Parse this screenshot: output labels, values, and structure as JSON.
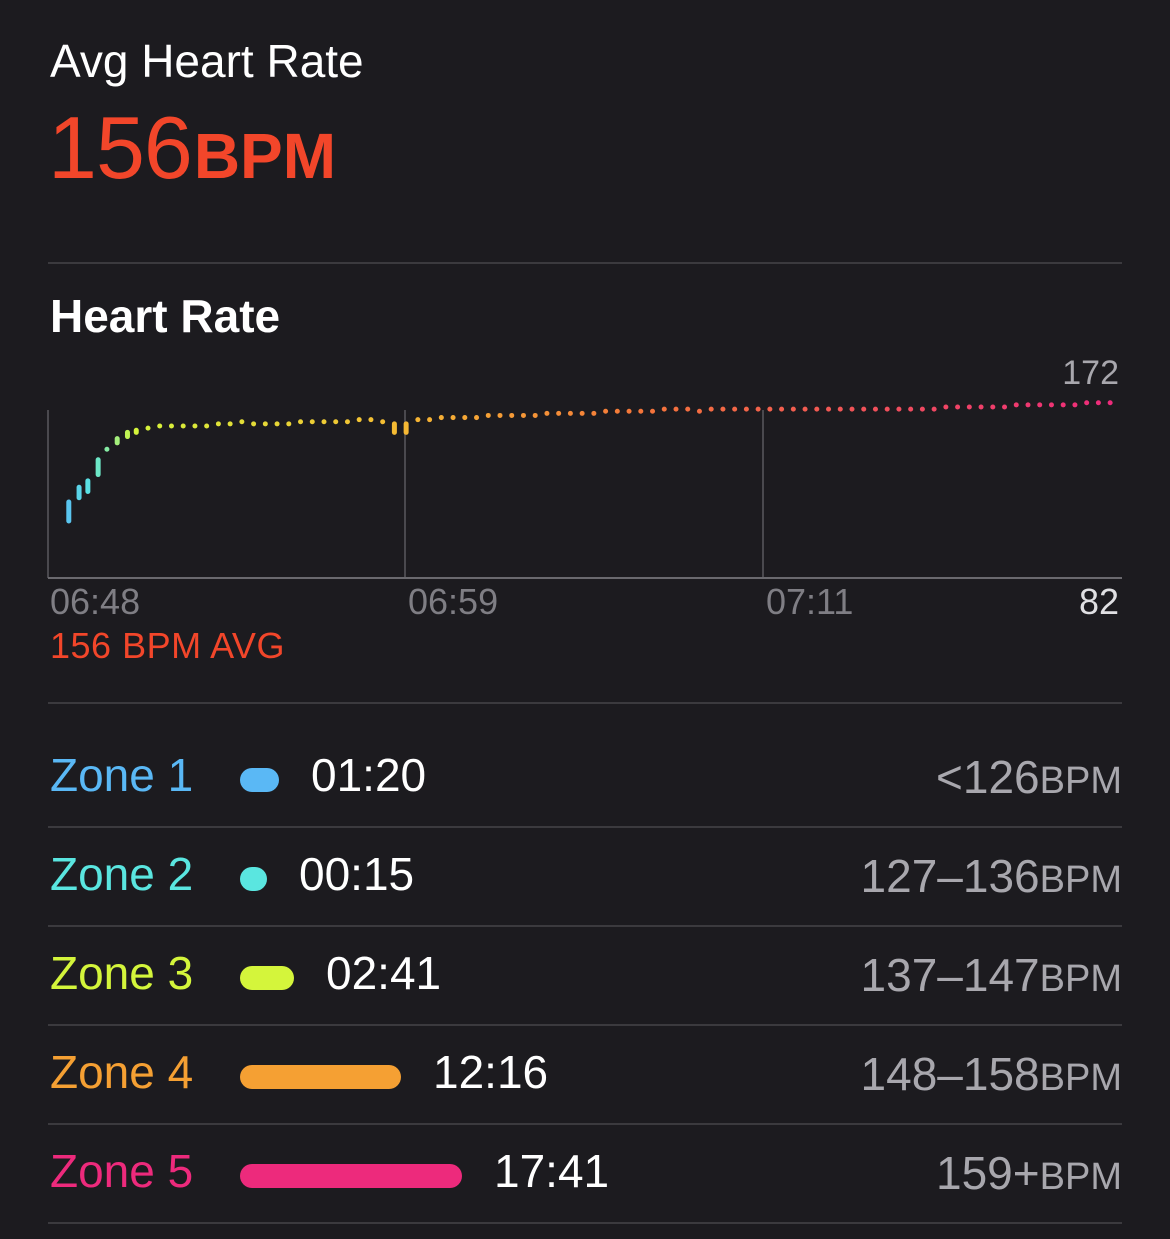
{
  "header": {
    "label": "Avg Heart Rate",
    "value": "156",
    "unit": "BPM"
  },
  "section": {
    "title": "Heart Rate"
  },
  "chart_data": {
    "type": "scatter",
    "ylim": [
      82,
      172
    ],
    "y_max_label": "172",
    "y_min_label": "82",
    "x_tick_labels": [
      "06:48",
      "06:59",
      "07:11"
    ],
    "avg_label": "156 BPM AVG",
    "x_range_minutes": [
      0,
      36
    ],
    "points_minutes": [
      0.3,
      0.65,
      0.95,
      1.3,
      1.6,
      1.95,
      2.3,
      2.6,
      3.0,
      3.4,
      3.8,
      4.2,
      4.6,
      5.0,
      5.4,
      5.8,
      6.2,
      6.6,
      7.0,
      7.4,
      7.8,
      8.2,
      8.6,
      9.0,
      9.4,
      9.8,
      10.2,
      10.6,
      11.0,
      11.4,
      11.8,
      12.2,
      12.6,
      13.0,
      13.4,
      13.8,
      14.2,
      14.6,
      15.0,
      15.4,
      15.8,
      16.2,
      16.6,
      17.0,
      17.4,
      17.8,
      18.2,
      18.6,
      19.0,
      19.4,
      19.8,
      20.2,
      20.6,
      21.0,
      21.4,
      21.8,
      22.2,
      22.6,
      23.0,
      23.4,
      23.8,
      24.2,
      24.6,
      25.0,
      25.4,
      25.8,
      26.2,
      26.6,
      27.0,
      27.4,
      27.8,
      28.2,
      28.6,
      29.0,
      29.4,
      29.8,
      30.2,
      30.6,
      31.0,
      31.4,
      31.8,
      32.2,
      32.6,
      33.0,
      33.4,
      33.8,
      34.2,
      34.6,
      35.0,
      35.4,
      35.8
    ],
    "points_bpm": [
      118,
      125,
      128,
      138,
      143,
      148,
      151,
      152,
      153,
      154,
      154,
      154,
      154,
      154,
      155,
      155,
      156,
      155,
      155,
      155,
      155,
      156,
      156,
      156,
      156,
      156,
      157,
      157,
      156,
      155,
      155,
      157,
      157,
      158,
      158,
      158,
      158,
      159,
      159,
      159,
      159,
      159,
      160,
      160,
      160,
      160,
      160,
      161,
      161,
      161,
      161,
      161,
      162,
      162,
      162,
      161,
      162,
      162,
      162,
      162,
      162,
      162,
      162,
      162,
      162,
      162,
      162,
      162,
      162,
      162,
      162,
      162,
      162,
      162,
      162,
      162,
      163,
      163,
      163,
      163,
      163,
      163,
      164,
      164,
      164,
      164,
      164,
      164,
      165,
      165,
      165
    ],
    "range_bpm_low": [
      109,
      120,
      123,
      131,
      143,
      146,
      149,
      151,
      153,
      154,
      154,
      154,
      154,
      154,
      155,
      155,
      156,
      155,
      155,
      155,
      155,
      156,
      156,
      156,
      156,
      156,
      157,
      157,
      156,
      151,
      151,
      157,
      157,
      158,
      158,
      158,
      158,
      159,
      159,
      159,
      159,
      159,
      160,
      160,
      160,
      160,
      160,
      161,
      161,
      161,
      161,
      161,
      162,
      162,
      162,
      161,
      162,
      162,
      162,
      162,
      162,
      162,
      162,
      162,
      162,
      162,
      162,
      162,
      162,
      162,
      162,
      162,
      162,
      162,
      162,
      162,
      163,
      163,
      163,
      163,
      163,
      163,
      164,
      164,
      164,
      164,
      164,
      164,
      165,
      165,
      165
    ]
  },
  "zones": [
    {
      "name": "Zone 1",
      "duration": "01:20",
      "range": "<126",
      "unit": "BPM",
      "color": "#5ab8f5",
      "duration_seconds": 80
    },
    {
      "name": "Zone 2",
      "duration": "00:15",
      "range": "127–136",
      "unit": "BPM",
      "color": "#5ae6e0",
      "duration_seconds": 15
    },
    {
      "name": "Zone 3",
      "duration": "02:41",
      "range": "137–147",
      "unit": "BPM",
      "color": "#d4f53b",
      "duration_seconds": 161
    },
    {
      "name": "Zone 4",
      "duration": "12:16",
      "range": "148–158",
      "unit": "BPM",
      "color": "#f5a033",
      "duration_seconds": 736
    },
    {
      "name": "Zone 5",
      "duration": "17:41",
      "range": "159+",
      "unit": "BPM",
      "color": "#ed2a7c",
      "duration_seconds": 1061
    }
  ]
}
